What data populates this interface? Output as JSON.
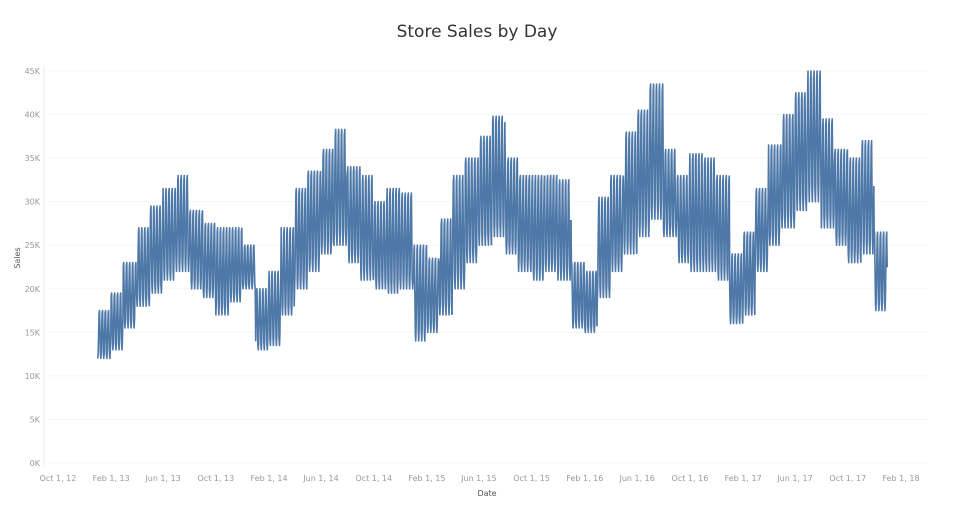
{
  "chart_data": {
    "type": "line",
    "title": "Store Sales by Day",
    "xlabel": "Date",
    "ylabel": "Sales",
    "ylim": [
      0,
      45000
    ],
    "xlim": [
      "2012-10-01",
      "2018-02-01"
    ],
    "y_ticks": [
      "0K",
      "5K",
      "10K",
      "15K",
      "20K",
      "25K",
      "30K",
      "35K",
      "40K",
      "45K"
    ],
    "x_ticks": [
      "Oct 1, 12",
      "Feb 1, 13",
      "Jun 1, 13",
      "Oct 1, 13",
      "Feb 1, 14",
      "Jun 1, 14",
      "Oct 1, 14",
      "Feb 1, 15",
      "Jun 1, 15",
      "Oct 1, 15",
      "Feb 1, 16",
      "Jun 1, 16",
      "Oct 1, 16",
      "Feb 1, 17",
      "Jun 1, 17",
      "Oct 1, 17",
      "Feb 1, 18"
    ],
    "grid": true,
    "color": "#4e78a8",
    "series_note_monthly_range": "daily values oscillate weekly between monthly low and high",
    "monthly": [
      {
        "month": "2013-01",
        "low": 12000,
        "high": 17500
      },
      {
        "month": "2013-02",
        "low": 13000,
        "high": 19500
      },
      {
        "month": "2013-03",
        "low": 15500,
        "high": 23000
      },
      {
        "month": "2013-04",
        "low": 18000,
        "high": 27000
      },
      {
        "month": "2013-05",
        "low": 19500,
        "high": 29500
      },
      {
        "month": "2013-06",
        "low": 21000,
        "high": 31500
      },
      {
        "month": "2013-07",
        "low": 22000,
        "high": 33000
      },
      {
        "month": "2013-08",
        "low": 20000,
        "high": 29000
      },
      {
        "month": "2013-09",
        "low": 19000,
        "high": 27500
      },
      {
        "month": "2013-10",
        "low": 17000,
        "high": 27000
      },
      {
        "month": "2013-11",
        "low": 18500,
        "high": 27000
      },
      {
        "month": "2013-12",
        "low": 20000,
        "high": 25000
      },
      {
        "month": "2014-01",
        "low": 13000,
        "high": 20000
      },
      {
        "month": "2014-02",
        "low": 13500,
        "high": 22000
      },
      {
        "month": "2014-03",
        "low": 17000,
        "high": 27000
      },
      {
        "month": "2014-04",
        "low": 20000,
        "high": 31500
      },
      {
        "month": "2014-05",
        "low": 22000,
        "high": 33500
      },
      {
        "month": "2014-06",
        "low": 24000,
        "high": 36000
      },
      {
        "month": "2014-07",
        "low": 25000,
        "high": 38300
      },
      {
        "month": "2014-08",
        "low": 23000,
        "high": 34000
      },
      {
        "month": "2014-09",
        "low": 21000,
        "high": 33000
      },
      {
        "month": "2014-10",
        "low": 20000,
        "high": 30000
      },
      {
        "month": "2014-11",
        "low": 19500,
        "high": 31500
      },
      {
        "month": "2014-12",
        "low": 20000,
        "high": 31000
      },
      {
        "month": "2015-01",
        "low": 14000,
        "high": 25000
      },
      {
        "month": "2015-02",
        "low": 15000,
        "high": 23500
      },
      {
        "month": "2015-03",
        "low": 17000,
        "high": 28000
      },
      {
        "month": "2015-04",
        "low": 20000,
        "high": 33000
      },
      {
        "month": "2015-05",
        "low": 23000,
        "high": 35000
      },
      {
        "month": "2015-06",
        "low": 25000,
        "high": 37500
      },
      {
        "month": "2015-07",
        "low": 26000,
        "high": 39800
      },
      {
        "month": "2015-08",
        "low": 24000,
        "high": 35000
      },
      {
        "month": "2015-09",
        "low": 22000,
        "high": 33000
      },
      {
        "month": "2015-10",
        "low": 21000,
        "high": 33000
      },
      {
        "month": "2015-11",
        "low": 22000,
        "high": 33000
      },
      {
        "month": "2015-12",
        "low": 21000,
        "high": 32500
      },
      {
        "month": "2016-01",
        "low": 15500,
        "high": 23000
      },
      {
        "month": "2016-02",
        "low": 15000,
        "high": 22000
      },
      {
        "month": "2016-03",
        "low": 19000,
        "high": 30500
      },
      {
        "month": "2016-04",
        "low": 22000,
        "high": 33000
      },
      {
        "month": "2016-05",
        "low": 24000,
        "high": 38000
      },
      {
        "month": "2016-06",
        "low": 26000,
        "high": 40500
      },
      {
        "month": "2016-07",
        "low": 28000,
        "high": 43500
      },
      {
        "month": "2016-08",
        "low": 26000,
        "high": 36000
      },
      {
        "month": "2016-09",
        "low": 23000,
        "high": 33000
      },
      {
        "month": "2016-10",
        "low": 22000,
        "high": 35500
      },
      {
        "month": "2016-11",
        "low": 22000,
        "high": 35000
      },
      {
        "month": "2016-12",
        "low": 21000,
        "high": 33000
      },
      {
        "month": "2017-01",
        "low": 16000,
        "high": 24000
      },
      {
        "month": "2017-02",
        "low": 17000,
        "high": 26500
      },
      {
        "month": "2017-03",
        "low": 22000,
        "high": 31500
      },
      {
        "month": "2017-04",
        "low": 25000,
        "high": 36500
      },
      {
        "month": "2017-05",
        "low": 27000,
        "high": 40000
      },
      {
        "month": "2017-06",
        "low": 29000,
        "high": 42500
      },
      {
        "month": "2017-07",
        "low": 30000,
        "high": 45000
      },
      {
        "month": "2017-08",
        "low": 27000,
        "high": 39500
      },
      {
        "month": "2017-09",
        "low": 25000,
        "high": 36000
      },
      {
        "month": "2017-10",
        "low": 23000,
        "high": 35000
      },
      {
        "month": "2017-11",
        "low": 24000,
        "high": 37000
      },
      {
        "month": "2017-12",
        "low": 17500,
        "high": 26500
      }
    ]
  }
}
